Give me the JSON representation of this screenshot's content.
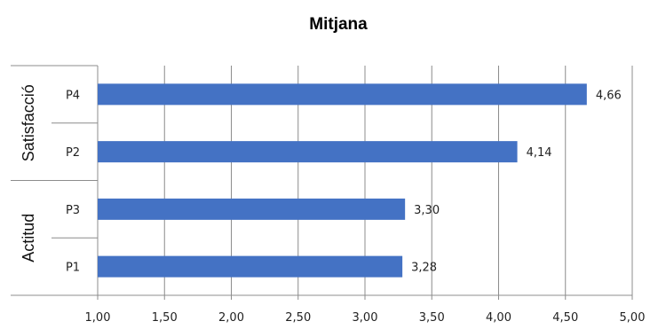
{
  "chart_data": {
    "type": "bar",
    "orientation": "horizontal",
    "title": "Mitjana",
    "xlabel": "",
    "ylabel": "",
    "xlim": [
      1.0,
      5.0
    ],
    "xticks": [
      "1,00",
      "1,50",
      "2,00",
      "2,50",
      "3,00",
      "3,50",
      "4,00",
      "4,50",
      "5,00"
    ],
    "grid": "vertical",
    "bar_color": "#4472C4",
    "groups": [
      {
        "label": "Satisfacció",
        "categories": [
          {
            "label": "P4",
            "value": 4.66,
            "value_label": "4,66"
          },
          {
            "label": "P2",
            "value": 4.14,
            "value_label": "4,14"
          }
        ]
      },
      {
        "label": "Actitud",
        "categories": [
          {
            "label": "P3",
            "value": 3.3,
            "value_label": "3,30"
          },
          {
            "label": "P1",
            "value": 3.28,
            "value_label": "3,28"
          }
        ]
      }
    ]
  }
}
